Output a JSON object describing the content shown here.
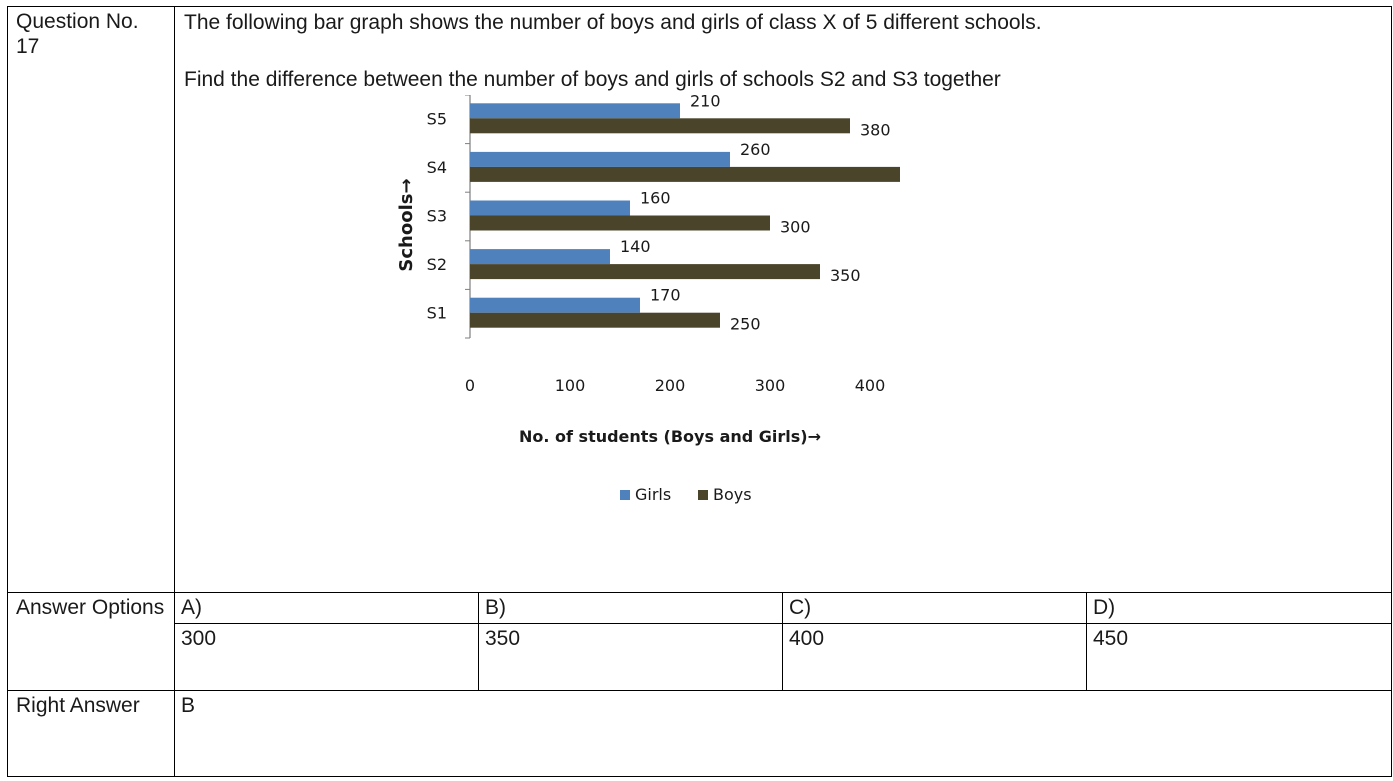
{
  "question": {
    "label": "Question No. 17",
    "line1": "The following bar graph shows the number of boys and girls of class X of 5 different schools.",
    "line2": "Find the difference  between the number of boys and girls of schools S2 and S3 together"
  },
  "chart_data": {
    "type": "bar",
    "orientation": "horizontal",
    "categories": [
      "S1",
      "S2",
      "S3",
      "S4",
      "S5"
    ],
    "series": [
      {
        "name": "Girls",
        "values": [
          170,
          140,
          160,
          260,
          210
        ],
        "color": "#4f81bd"
      },
      {
        "name": "Boys",
        "values": [
          250,
          350,
          300,
          440,
          380
        ],
        "color": "#4a452a"
      }
    ],
    "xlabel": "No. of students (Boys and Girls)→",
    "ylabel": "Schools→",
    "xlim": [
      0,
      500
    ],
    "xticks": [
      "0",
      "100",
      "200",
      "300",
      "400",
      "500"
    ],
    "legend": "bottom",
    "grid": false
  },
  "answer_options": {
    "label": "Answer Options",
    "letters": [
      "A)",
      "B)",
      "C)",
      "D)"
    ],
    "values": [
      "300",
      "350",
      "400",
      "450"
    ]
  },
  "right_answer": {
    "label": "Right Answer",
    "value": "B"
  }
}
